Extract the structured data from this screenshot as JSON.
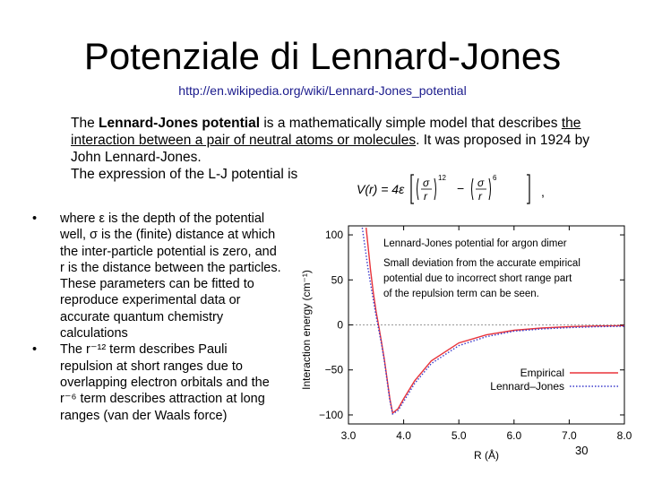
{
  "slide": {
    "title": "Potenziale di Lennard-Jones",
    "url": "http://en.wikipedia.org/wiki/Lennard-Jones_potential",
    "page_number": "30"
  },
  "intro": {
    "part1": "The ",
    "bold": "Lennard-Jones potential",
    "part2": " is a mathematically simple model that describes ",
    "underlined": "the interaction between a pair of neutral atoms or molecules",
    "part3": ". It was proposed in 1924 by John Lennard-Jones.",
    "line2": "The expression of the L-J potential is"
  },
  "formula": {
    "lhs": "V(r) = 4ε",
    "sigma": "σ",
    "r": "r",
    "exp12": "12",
    "exp6": "6",
    "minus": "−",
    "comma": ","
  },
  "bullets": [
    {
      "marker": "•",
      "text": "where ε is the depth of the potential well, σ is the (finite) distance at which the inter-particle potential is zero, and r is the distance between the particles. These parameters can be fitted to reproduce experimental data or accurate quantum chemistry calculations"
    },
    {
      "marker": "•",
      "text": "The r⁻¹² term describes Pauli repulsion at short ranges due to overlapping electron orbitals and the r⁻⁶ term describes attraction at long ranges (van der Waals force)"
    }
  ],
  "chart_data": {
    "type": "line",
    "title": "Lennard-Jones potential for argon dimer",
    "annotation": "Small deviation from the accurate empirical potential due to incorrect short range part of the repulsion term can be seen.",
    "xlabel": "R (Å)",
    "ylabel": "Interaction energy (cm⁻¹)",
    "xlim": [
      3.0,
      8.0
    ],
    "ylim": [
      -110,
      110
    ],
    "xticks": [
      "3.0",
      "4.0",
      "5.0",
      "6.0",
      "7.0",
      "8.0"
    ],
    "yticks": [
      "100",
      "50",
      "0",
      "−50",
      "−100"
    ],
    "legend_position": "bottom-right",
    "series": [
      {
        "name": "Empirical",
        "color": "#e8333a",
        "style": "solid",
        "x": [
          3.32,
          3.35,
          3.4,
          3.45,
          3.5,
          3.55,
          3.6,
          3.65,
          3.7,
          3.75,
          3.8,
          3.9,
          4.0,
          4.2,
          4.5,
          5.0,
          5.5,
          6.0,
          6.5,
          7.0,
          7.5,
          8.0
        ],
        "values": [
          108,
          90,
          61,
          36,
          15,
          -2,
          -20,
          -38,
          -60,
          -82,
          -98,
          -93,
          -82,
          -62,
          -40,
          -20,
          -11,
          -6,
          -3.5,
          -2,
          -1.2,
          -0.8
        ]
      },
      {
        "name": "Lennard–Jones",
        "color": "#3a3acc",
        "style": "dotted",
        "x": [
          3.25,
          3.3,
          3.35,
          3.4,
          3.45,
          3.5,
          3.55,
          3.6,
          3.65,
          3.7,
          3.75,
          3.8,
          3.9,
          4.0,
          4.2,
          4.5,
          5.0,
          5.5,
          6.0,
          6.5,
          7.0,
          7.5,
          8.0
        ],
        "values": [
          108,
          86,
          64,
          46,
          28,
          10,
          -6,
          -22,
          -40,
          -62,
          -84,
          -99,
          -95,
          -85,
          -65,
          -43,
          -23,
          -13,
          -7,
          -4.5,
          -3,
          -2,
          -1.5
        ]
      }
    ]
  }
}
